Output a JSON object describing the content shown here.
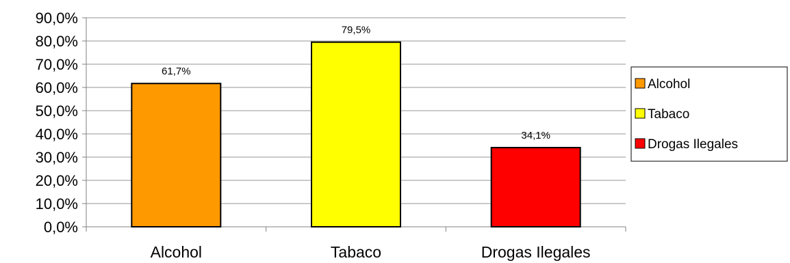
{
  "chart_data": {
    "type": "bar",
    "categories": [
      "Alcohol",
      "Tabaco",
      "Drogas Ilegales"
    ],
    "values": [
      61.7,
      79.5,
      34.1
    ],
    "value_labels": [
      "61,7%",
      "79,5%",
      "34,1%"
    ],
    "colors": [
      "#FF9900",
      "#FFFF00",
      "#FF0000"
    ],
    "ylim": [
      0,
      90
    ],
    "yticks": [
      0,
      10,
      20,
      30,
      40,
      50,
      60,
      70,
      80,
      90
    ],
    "ytick_labels": [
      "0,0%",
      "10,0%",
      "20,0%",
      "30,0%",
      "40,0%",
      "50,0%",
      "60,0%",
      "70,0%",
      "80,0%",
      "90,0%"
    ],
    "grid": true,
    "legend": {
      "position": "right",
      "entries": [
        "Alcohol",
        "Tabaco",
        "Drogas Ilegales"
      ]
    },
    "title": "",
    "xlabel": "",
    "ylabel": ""
  }
}
